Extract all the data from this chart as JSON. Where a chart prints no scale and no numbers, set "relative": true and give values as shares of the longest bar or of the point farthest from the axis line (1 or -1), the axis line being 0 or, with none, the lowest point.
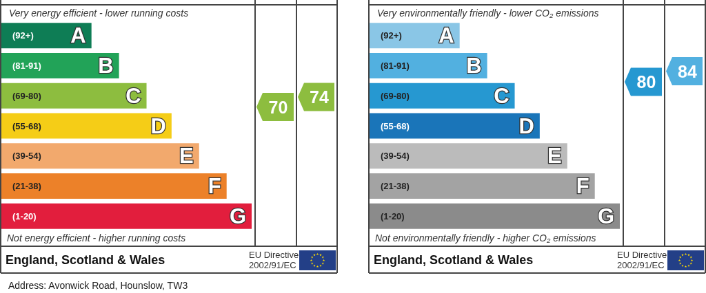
{
  "chart_data": [
    {
      "type": "bar",
      "orientation": "horizontal",
      "relative": true,
      "title": "Very energy efficient - lower running costs",
      "categories": [
        "(92+)",
        "(81-91)",
        "(69-80)",
        "(55-68)",
        "(39-54)",
        "(21-38)",
        "(1-20)"
      ],
      "values": [
        0.36,
        0.47,
        0.58,
        0.68,
        0.79,
        0.9,
        1
      ],
      "colors": [
        "#0e7d55",
        "#22a358",
        "#8dbd3f",
        "#f5cd17",
        "#f2a96d",
        "#ec8129",
        "#e21e3d"
      ],
      "annotations": [
        "Not energy efficient - higher running costs",
        "England, Scotland & Wales",
        "EU Directive\n2002/91/EC",
        "70",
        "74",
        "Address: Avonwick Road, Hounslow, TW3",
        {
          "text": "A",
          "x": 0.36,
          "y": "(92+)"
        },
        {
          "text": "B",
          "x": 0.47,
          "y": "(81-91)"
        },
        {
          "text": "C",
          "x": 0.58,
          "y": "(69-80)"
        },
        {
          "text": "D",
          "x": 0.68,
          "y": "(55-68)"
        },
        {
          "text": "E",
          "x": 0.79,
          "y": "(39-54)"
        },
        {
          "text": "F",
          "x": 0.9,
          "y": "(21-38)"
        },
        {
          "text": "G",
          "x": 1,
          "y": "(1-20)"
        }
      ]
    },
    {
      "type": "bar",
      "orientation": "horizontal",
      "relative": true,
      "title": "Very environmentally friendly - lower CO₂ emissions",
      "categories": [
        "(92+)",
        "(81-91)",
        "(69-80)",
        "(55-68)",
        "(39-54)",
        "(21-38)",
        "(1-20)"
      ],
      "values": [
        0.36,
        0.47,
        0.58,
        0.68,
        0.79,
        0.9,
        1
      ],
      "colors": [
        "#8ac6e6",
        "#52b0e0",
        "#2698d1",
        "#1a75b9",
        "#bbbbbb",
        "#a3a3a3",
        "#8b8b8b"
      ],
      "annotations": [
        "Not environmentally friendly - higher CO₂ emissions",
        "England, Scotland & Wales",
        "EU Directive\n2002/91/EC",
        "80",
        "84",
        {
          "text": "A",
          "x": 0.36,
          "y": "(92+)"
        },
        {
          "text": "B",
          "x": 0.47,
          "y": "(81-91)"
        },
        {
          "text": "C",
          "x": 0.58,
          "y": "(69-80)"
        },
        {
          "text": "D",
          "x": 0.68,
          "y": "(55-68)"
        },
        {
          "text": "E",
          "x": 0.79,
          "y": "(39-54)"
        },
        {
          "text": "F",
          "x": 0.9,
          "y": "(21-38)"
        },
        {
          "text": "G",
          "x": 1,
          "y": "(1-20)"
        }
      ]
    }
  ]
}
